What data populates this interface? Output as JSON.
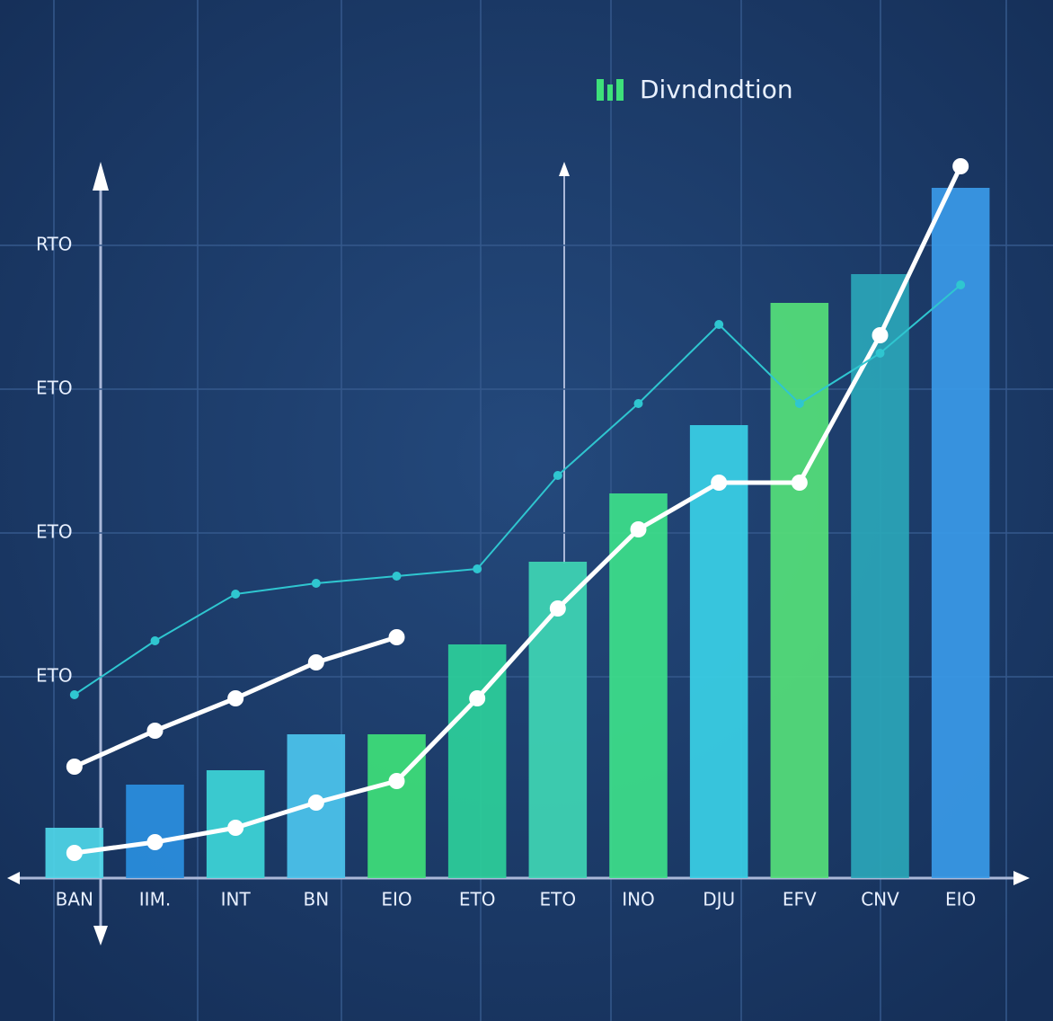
{
  "chart_data": {
    "type": "bar",
    "title": "Divndndtion",
    "categories": [
      "BAN",
      "IIM.",
      "INT",
      "BN",
      "EIO",
      "ETO",
      "ETO",
      "INO",
      "DJU",
      "EFV",
      "CNV",
      "EIO"
    ],
    "values": [
      9,
      15,
      17,
      22,
      22,
      34.5,
      46,
      55.5,
      65,
      82,
      86,
      98
    ],
    "colors": [
      "#4fd6e8",
      "#2a8fe0",
      "#3dd6d8",
      "#4cc6ee",
      "#3ee07a",
      "#2ccf9a",
      "#3fd6b4",
      "#3de08a",
      "#3ad0e6",
      "#55e07a",
      "#2aa6b8",
      "#3a9ae8"
    ],
    "series": [
      {
        "color": "#ffffff",
        "values": [
          5.5,
          7,
          9,
          12.5,
          15.5,
          27,
          39.5,
          50.5,
          57,
          57,
          77.5,
          101
        ]
      },
      {
        "color": "#ffffff",
        "values": [
          17.5,
          22.5,
          27,
          32,
          35.5,
          null,
          null,
          null,
          null,
          null,
          null,
          null
        ]
      },
      {
        "color": "#2fc6d0",
        "values": [
          27.5,
          35,
          41.5,
          43,
          44,
          45,
          58,
          68,
          79,
          68,
          75,
          84.5
        ]
      }
    ],
    "ylim": [
      2,
      102
    ],
    "yticks": [
      {
        "value": 30,
        "label": "ETO"
      },
      {
        "value": 50,
        "label": "ETO"
      },
      {
        "value": 70,
        "label": "ETO"
      },
      {
        "value": 90,
        "label": "RTO"
      }
    ],
    "grid": true
  }
}
